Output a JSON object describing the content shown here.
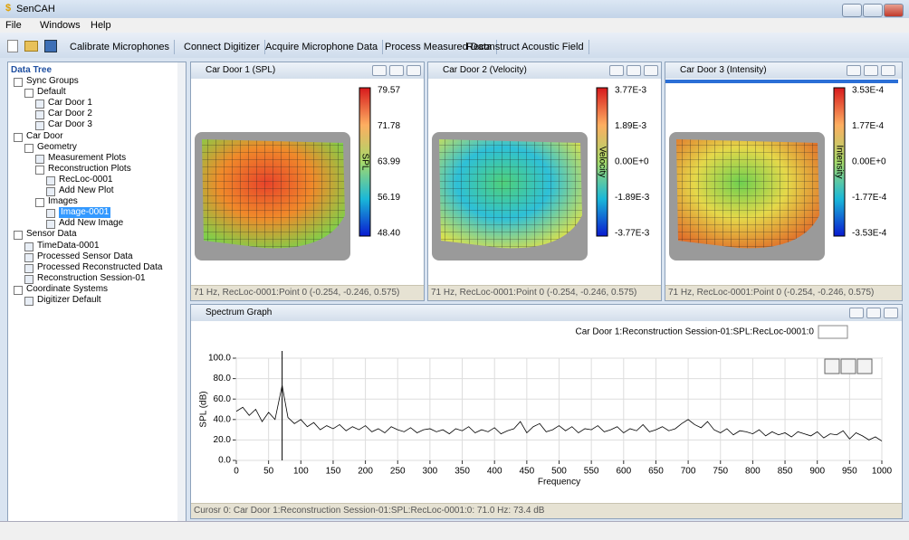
{
  "window": {
    "title": "SenCAH"
  },
  "menu": {
    "items": [
      "File",
      "Windows",
      "Help"
    ]
  },
  "toolbar": {
    "buttons": [
      "Calibrate Microphones",
      "Connect Digitizer",
      "Acquire Microphone Data",
      "Process Measured Data",
      "Reconstruct Acoustic Field"
    ]
  },
  "tree": {
    "header": "Data Tree",
    "nodes": [
      {
        "label": "Sync Groups",
        "children": [
          {
            "label": "Default",
            "children": [
              {
                "label": "Car Door 1"
              },
              {
                "label": "Car Door 2"
              },
              {
                "label": "Car Door 3"
              }
            ]
          }
        ]
      },
      {
        "label": "Car Door",
        "children": [
          {
            "label": "Geometry",
            "children": [
              {
                "label": "Measurement Plots"
              },
              {
                "label": "Reconstruction Plots",
                "children": [
                  {
                    "label": "RecLoc-0001"
                  },
                  {
                    "label": "Add New Plot"
                  }
                ]
              },
              {
                "label": "Images",
                "children": [
                  {
                    "label": "Image-0001",
                    "selected": true
                  },
                  {
                    "label": "Add New Image"
                  }
                ]
              }
            ]
          }
        ]
      },
      {
        "label": "Sensor Data",
        "children": [
          {
            "label": "TimeData-0001"
          },
          {
            "label": "Processed Sensor Data"
          },
          {
            "label": "Processed Reconstructed Data"
          },
          {
            "label": "Reconstruction Session-01"
          }
        ]
      },
      {
        "label": "Coordinate Systems",
        "children": [
          {
            "label": "Digitizer Default"
          }
        ]
      }
    ]
  },
  "panels": [
    {
      "title": "Car Door 1 (SPL)",
      "scale_label": "SPL",
      "scale_ticks": [
        "79.57",
        "71.78",
        "63.99",
        "56.19",
        "48.40"
      ],
      "status": "71 Hz, RecLoc-0001:Point 0 (-0.254, -0.246, 0.575)"
    },
    {
      "title": "Car Door 2 (Velocity)",
      "scale_label": "Velocity",
      "scale_ticks": [
        "3.77E-3",
        "1.89E-3",
        "0.00E+0",
        "-1.89E-3",
        "-3.77E-3"
      ],
      "status": "71 Hz, RecLoc-0001:Point 0 (-0.254, -0.246, 0.575)"
    },
    {
      "title": "Car Door 3 (Intensity)",
      "scale_label": "Intensity",
      "scale_ticks": [
        "3.53E-4",
        "1.77E-4",
        "0.00E+0",
        "-1.77E-4",
        "-3.53E-4"
      ],
      "status": "71 Hz, RecLoc-0001:Point 0 (-0.254, -0.246, 0.575)"
    }
  ],
  "spectrum": {
    "title": "Spectrum Graph",
    "status": "Curosr 0: Car Door 1:Reconstruction Session-01:SPL:RecLoc-0001:0: 71.0 Hz: 73.4 dB"
  },
  "chart_data": {
    "type": "line",
    "series_label": "Car Door 1:Reconstruction Session-01:SPL:RecLoc-0001:0",
    "ylabel": "SPL (dB)",
    "xlabel": "Frequency",
    "color": "#000000",
    "grid": true,
    "cursor_x": 71,
    "xlim": [
      0,
      1000
    ],
    "ylim": [
      0,
      100
    ],
    "xticks": [
      0,
      50,
      100,
      150,
      200,
      250,
      300,
      350,
      400,
      450,
      500,
      550,
      600,
      650,
      700,
      750,
      800,
      850,
      900,
      950,
      1000
    ],
    "yticks": [
      {
        "value": 0,
        "label": "0.0"
      },
      {
        "value": 20,
        "label": "20.0"
      },
      {
        "value": 40,
        "label": "40.0"
      },
      {
        "value": 60,
        "label": "60.0"
      },
      {
        "value": 80,
        "label": "80.0"
      },
      {
        "value": 100,
        "label": "100.0"
      }
    ],
    "x": [
      0,
      10,
      20,
      30,
      40,
      50,
      60,
      71,
      80,
      90,
      100,
      110,
      120,
      130,
      140,
      150,
      160,
      170,
      180,
      190,
      200,
      210,
      220,
      230,
      240,
      250,
      260,
      270,
      280,
      290,
      300,
      310,
      320,
      330,
      340,
      350,
      360,
      370,
      380,
      390,
      400,
      410,
      420,
      430,
      440,
      450,
      460,
      470,
      480,
      490,
      500,
      510,
      520,
      530,
      540,
      550,
      560,
      570,
      580,
      590,
      600,
      610,
      620,
      630,
      640,
      650,
      660,
      670,
      680,
      690,
      700,
      710,
      720,
      730,
      740,
      750,
      760,
      770,
      780,
      790,
      800,
      810,
      820,
      830,
      840,
      850,
      860,
      870,
      880,
      890,
      900,
      910,
      920,
      930,
      940,
      950,
      960,
      970,
      980,
      990,
      1000
    ],
    "values": [
      48,
      52,
      44,
      50,
      38,
      47,
      40,
      73.4,
      42,
      36,
      40,
      33,
      37,
      30,
      34,
      31,
      35,
      29,
      33,
      30,
      34,
      28,
      31,
      27,
      33,
      30,
      28,
      32,
      27,
      30,
      31,
      28,
      30,
      26,
      31,
      29,
      33,
      27,
      30,
      28,
      32,
      26,
      29,
      31,
      38,
      27,
      33,
      36,
      28,
      30,
      34,
      29,
      33,
      27,
      31,
      30,
      34,
      28,
      30,
      33,
      27,
      31,
      29,
      35,
      28,
      30,
      33,
      29,
      31,
      36,
      40,
      35,
      32,
      38,
      30,
      27,
      31,
      25,
      29,
      28,
      26,
      30,
      24,
      28,
      25,
      27,
      23,
      28,
      26,
      24,
      28,
      22,
      26,
      25,
      29,
      21,
      27,
      24,
      20,
      23,
      19
    ]
  }
}
